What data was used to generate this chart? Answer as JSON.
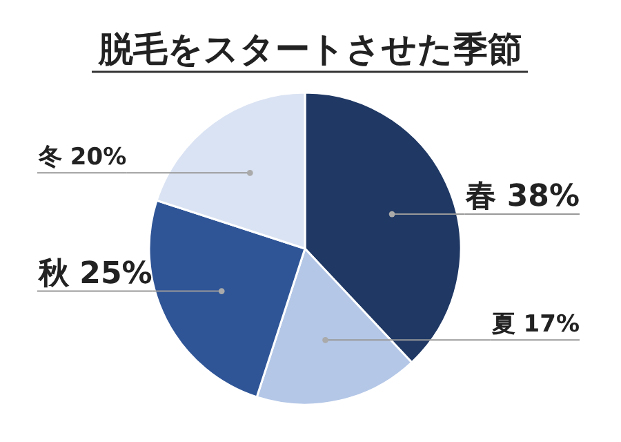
{
  "chart_data": {
    "type": "pie",
    "title": "脱毛をスタートさせた季節",
    "categories": [
      "春",
      "夏",
      "秋",
      "冬"
    ],
    "values": [
      38,
      17,
      25,
      20
    ],
    "value_labels": [
      "38%",
      "17%",
      "25%",
      "20%"
    ],
    "colors": [
      "#1f3864",
      "#b4c7e7",
      "#2f5597",
      "#dae3f3"
    ]
  }
}
